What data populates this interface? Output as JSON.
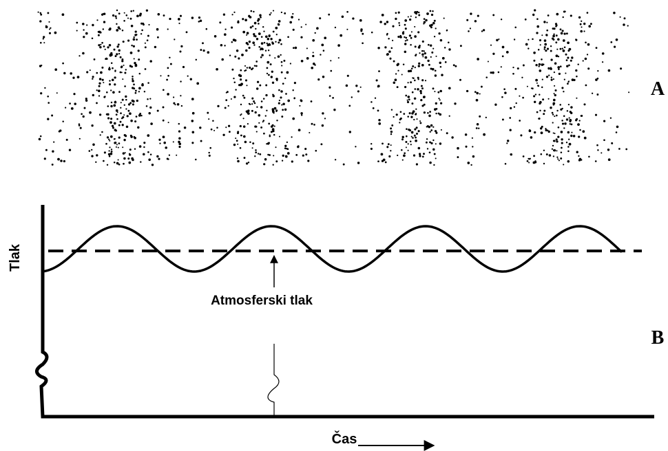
{
  "panel_a": {
    "label": "A"
  },
  "panel_b": {
    "label": "B",
    "y_axis_label": "Tlak",
    "x_axis_label": "Čas",
    "annotation": "Atmosferski tlak"
  }
}
